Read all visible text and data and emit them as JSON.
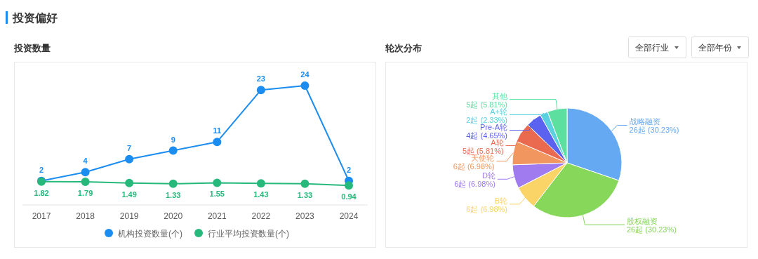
{
  "chart_data": [
    {
      "type": "line",
      "title": "投资数量",
      "annotations": [
        "投资偏好"
      ],
      "categories": [
        "2017",
        "2018",
        "2019",
        "2020",
        "2021",
        "2022",
        "2023",
        "2024"
      ],
      "series": [
        {
          "name": "机构投资数量(个)",
          "color": "#1b8cf0",
          "values": [
            2,
            4,
            7,
            9,
            11,
            23,
            24,
            2
          ]
        },
        {
          "name": "行业平均投资数量(个)",
          "color": "#27b97c",
          "values": [
            1.82,
            1.79,
            1.49,
            1.33,
            1.55,
            1.43,
            1.33,
            0.94
          ]
        }
      ],
      "data_labels": true,
      "legend": "bottom",
      "marker": "circle"
    },
    {
      "type": "pie",
      "title": "轮次分布",
      "annotations": [
        "全部行业",
        "全部年份"
      ],
      "categories": [
        "战略融资",
        "股权融资",
        "B轮",
        "D轮",
        "天使轮",
        "A轮",
        "Pre-A轮",
        "A+轮",
        "其他"
      ],
      "values": [
        26,
        26,
        6,
        6,
        6,
        5,
        4,
        2,
        5
      ],
      "colors": [
        "#65a9f3",
        "#86d75a",
        "#fad467",
        "#9f7bef",
        "#f0965e",
        "#ea6a50",
        "#5c62f0",
        "#5ad0e0",
        "#5ddfa0"
      ],
      "value_labels": [
        "26起 (30.23%)",
        "26起 (30.23%)",
        "6起 (6.98%)",
        "6起 (6.98%)",
        "6起 (6.98%)",
        "5起 (5.81%)",
        "4起 (4.65%)",
        "2起 (2.33%)",
        "5起 (5.81%)"
      ]
    }
  ]
}
